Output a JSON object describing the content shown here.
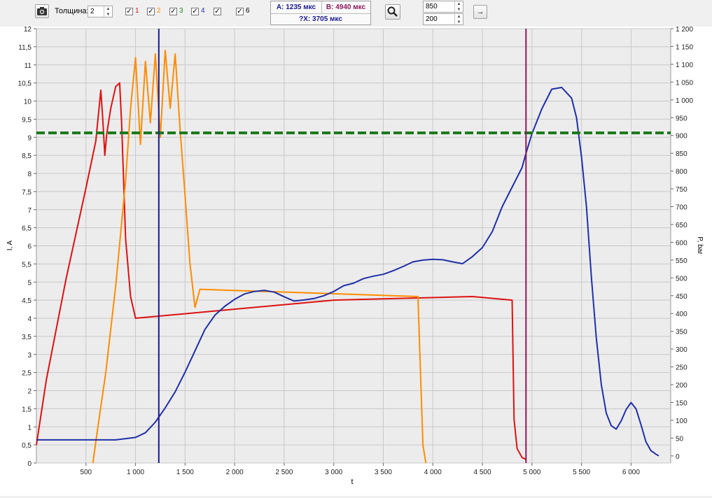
{
  "toolbar": {
    "thickness_label": "Толщина:",
    "thickness_value": "2",
    "channels": [
      {
        "label": "1",
        "checked": true,
        "color": "#dd1111"
      },
      {
        "label": "2",
        "checked": true,
        "color": "#ff8c00"
      },
      {
        "label": "3",
        "checked": true,
        "color": "#1c8a1c"
      },
      {
        "label": "4",
        "checked": true,
        "color": "#1f2fa8"
      },
      {
        "label": "",
        "checked": true,
        "color": "#cccccc"
      },
      {
        "label": "6",
        "checked": true,
        "color": "#000000"
      }
    ],
    "cursor_a": "A: 1235 мкс",
    "cursor_b": "B: 4940 мкс",
    "cursor_dx": "?X: 3705 мкс",
    "range_max": "850",
    "range_min": "200",
    "arrow_label": "→"
  },
  "chart_data": {
    "type": "line",
    "xlabel": "t",
    "ylabel_left": "I, A",
    "ylabel_right": "P, bar",
    "xlim": [
      0,
      6400
    ],
    "ylim_left": [
      0,
      12
    ],
    "ylim_right": [
      -20,
      1200
    ],
    "x_ticks": [
      500,
      1000,
      1500,
      2000,
      2500,
      3000,
      3500,
      4000,
      4500,
      5000,
      5500,
      6000
    ],
    "x_tick_labels": [
      "500",
      "1 000",
      "1 500",
      "2 000",
      "2 500",
      "3 000",
      "3 500",
      "4 000",
      "4 500",
      "5 000",
      "5 500",
      "6 000"
    ],
    "y_left_ticks": [
      0,
      0.5,
      1,
      1.5,
      2,
      2.5,
      3,
      3.5,
      4,
      4.5,
      5,
      5.5,
      6,
      6.5,
      7,
      7.5,
      8,
      8.5,
      9,
      9.5,
      10,
      10.5,
      11,
      11.5,
      12
    ],
    "y_left_tick_labels": [
      "0",
      "0,5",
      "1",
      "1,5",
      "2",
      "2,5",
      "3",
      "3,5",
      "4",
      "4,5",
      "5",
      "5,5",
      "6",
      "6,5",
      "7",
      "7,5",
      "8",
      "8,5",
      "9",
      "9,5",
      "10",
      "10,5",
      "11",
      "11,5",
      "12"
    ],
    "y_right_ticks": [
      0,
      50,
      100,
      150,
      200,
      250,
      300,
      350,
      400,
      450,
      500,
      550,
      600,
      650,
      700,
      750,
      800,
      850,
      900,
      950,
      1000,
      1050,
      1100,
      1150,
      1200
    ],
    "y_right_tick_labels": [
      "0",
      "50",
      "100",
      "150",
      "200",
      "250",
      "300",
      "350",
      "400",
      "450",
      "500",
      "550",
      "600",
      "650",
      "700",
      "750",
      "800",
      "850",
      "900",
      "950",
      "1 000",
      "1 050",
      "1 100",
      "1 150",
      "1 200"
    ],
    "grid": true,
    "cursors": [
      {
        "x": 1235,
        "color": "#1a1a8c"
      },
      {
        "x": 4940,
        "color": "#8b1a5a"
      }
    ],
    "threshold": {
      "y_left": 9.12,
      "color": "#1c7a1c",
      "style": "dashed"
    },
    "series": [
      {
        "axis": "left",
        "color": "#dd1111",
        "x": [
          0,
          100,
          300,
          500,
          600,
          650,
          670,
          690,
          710,
          750,
          800,
          840,
          860,
          900,
          950,
          1000,
          3000,
          4400,
          4800,
          4820,
          4850,
          4900,
          4940
        ],
        "y": [
          0.5,
          2.3,
          5.1,
          7.6,
          8.9,
          10.3,
          9.5,
          8.5,
          9.1,
          9.8,
          10.4,
          10.5,
          9.4,
          6.2,
          4.6,
          4.0,
          4.5,
          4.6,
          4.5,
          1.2,
          0.4,
          0.15,
          0.1
        ]
      },
      {
        "axis": "left",
        "color": "#ff8c00",
        "x": [
          570,
          600,
          700,
          800,
          900,
          950,
          1000,
          1050,
          1100,
          1150,
          1200,
          1250,
          1300,
          1350,
          1400,
          1450,
          1500,
          1550,
          1600,
          1650,
          3850,
          3900,
          3930
        ],
        "y": [
          0,
          0.6,
          2.5,
          4.9,
          7.8,
          9.8,
          11.2,
          8.8,
          11.1,
          9.4,
          11.3,
          9.0,
          11.4,
          9.8,
          11.3,
          9.2,
          7.4,
          5.5,
          4.3,
          4.8,
          4.6,
          0.5,
          0
        ]
      },
      {
        "axis": "right",
        "color": "#1f2fa8",
        "x": [
          0,
          200,
          500,
          800,
          1000,
          1100,
          1200,
          1300,
          1400,
          1500,
          1600,
          1700,
          1800,
          1900,
          2000,
          2100,
          2200,
          2300,
          2400,
          2500,
          2600,
          2700,
          2800,
          2900,
          3000,
          3100,
          3200,
          3300,
          3400,
          3500,
          3600,
          3700,
          3800,
          3900,
          4000,
          4100,
          4200,
          4300,
          4400,
          4500,
          4600,
          4700,
          4800,
          4900,
          4940,
          5000,
          5100,
          5200,
          5300,
          5400,
          5450,
          5500,
          5550,
          5600,
          5650,
          5700,
          5750,
          5800,
          5850,
          5900,
          5950,
          6000,
          6050,
          6100,
          6150,
          6200,
          6250,
          6280
        ],
        "y": [
          45,
          45,
          45,
          45,
          52,
          65,
          95,
          135,
          180,
          235,
          295,
          355,
          395,
          420,
          440,
          455,
          462,
          465,
          460,
          447,
          435,
          438,
          442,
          450,
          462,
          478,
          485,
          498,
          505,
          510,
          520,
          532,
          545,
          550,
          552,
          551,
          545,
          540,
          560,
          585,
          630,
          700,
          755,
          810,
          850,
          905,
          975,
          1030,
          1035,
          1005,
          950,
          840,
          700,
          500,
          330,
          200,
          120,
          85,
          75,
          98,
          130,
          150,
          132,
          88,
          40,
          15,
          5,
          0
        ]
      }
    ]
  }
}
